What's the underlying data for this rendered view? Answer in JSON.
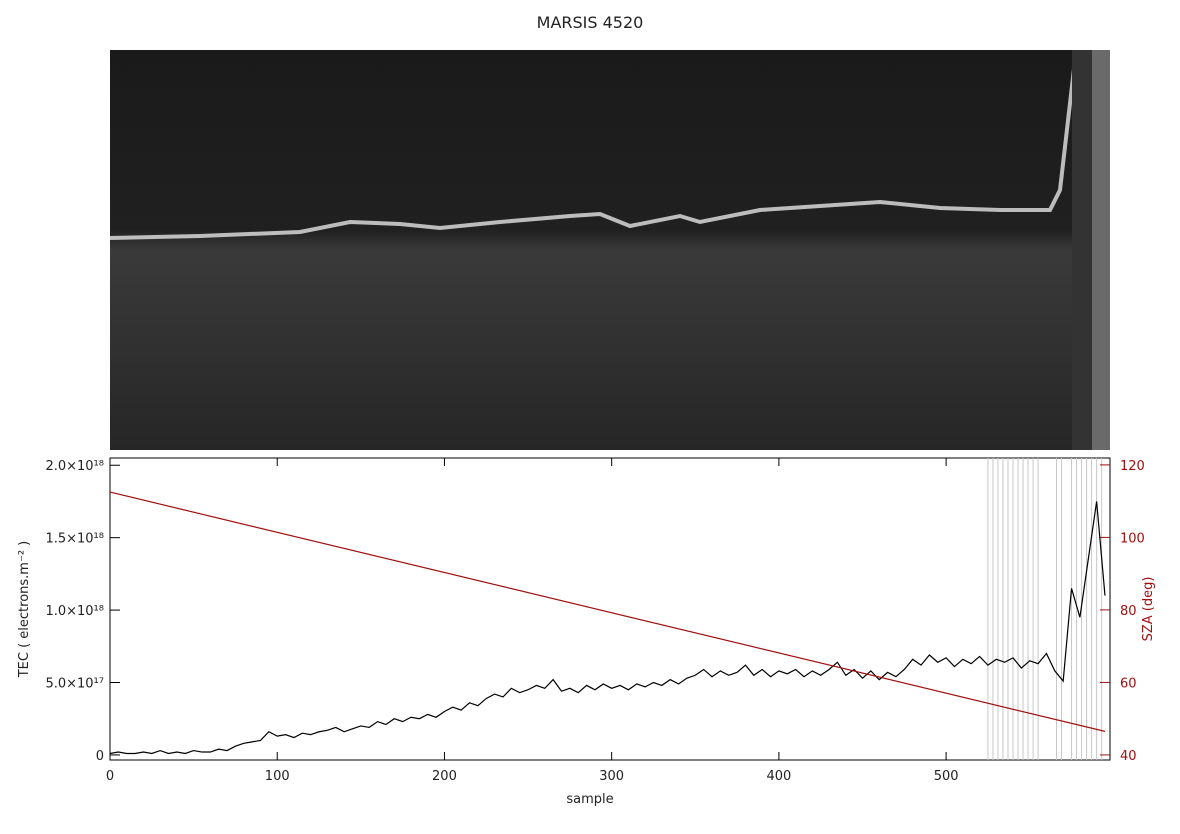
{
  "chart_data": {
    "type": "line",
    "title": "MARSIS 4520",
    "x_label": "sample",
    "y_label": "TEC ( electrons.m⁻² )",
    "y2_label": "SZA (deg)",
    "xlim": [
      0,
      598
    ],
    "xticks": [
      0,
      100,
      200,
      300,
      400,
      500
    ],
    "ylim": [
      -3.5e+16,
      2.05e+18
    ],
    "yticks": [
      0,
      {
        "value": 5e+17,
        "label": "5.0×10¹⁷"
      },
      {
        "value": 1e+18,
        "label": "1.0×10¹⁸"
      },
      {
        "value": 1.5e+18,
        "label": "1.5×10¹⁸"
      },
      {
        "value": 2e+18,
        "label": "2.0×10¹⁸"
      }
    ],
    "y2lim": [
      38.6,
      121.9
    ],
    "y2ticks": [
      40,
      60,
      80,
      100,
      120
    ],
    "vertical_lines": [
      525,
      528,
      531,
      534,
      537,
      540,
      543,
      546,
      549,
      552,
      555,
      566,
      569,
      575,
      578,
      581,
      584,
      587,
      590,
      593
    ],
    "vertical_line_color": "#c8c8c8",
    "series": [
      {
        "name": "TEC",
        "color": "#000000",
        "x": [
          0,
          5,
          10,
          15,
          20,
          25,
          30,
          35,
          40,
          45,
          50,
          55,
          60,
          65,
          70,
          75,
          80,
          85,
          90,
          95,
          100,
          105,
          110,
          115,
          120,
          125,
          130,
          135,
          140,
          145,
          150,
          155,
          160,
          165,
          170,
          175,
          180,
          185,
          190,
          195,
          200,
          205,
          210,
          215,
          220,
          225,
          230,
          235,
          240,
          245,
          250,
          255,
          260,
          265,
          270,
          275,
          280,
          285,
          290,
          295,
          300,
          305,
          310,
          315,
          320,
          325,
          330,
          335,
          340,
          345,
          350,
          355,
          360,
          365,
          370,
          375,
          380,
          385,
          390,
          395,
          400,
          405,
          410,
          415,
          420,
          425,
          430,
          435,
          440,
          445,
          450,
          455,
          460,
          465,
          470,
          475,
          480,
          485,
          490,
          495,
          500,
          505,
          510,
          515,
          520,
          525,
          530,
          535,
          540,
          545,
          550,
          555,
          560,
          565,
          570,
          575,
          580,
          585,
          590,
          595
        ],
        "values": [
          1e+16,
          2e+16,
          1e+16,
          1e+16,
          2e+16,
          1e+16,
          3e+16,
          1e+16,
          2e+16,
          1e+16,
          3e+16,
          2e+16,
          2e+16,
          4e+16,
          3e+16,
          6e+16,
          8e+16,
          9e+16,
          1e+17,
          1.6e+17,
          1.3e+17,
          1.4e+17,
          1.2e+17,
          1.5e+17,
          1.4e+17,
          1.6e+17,
          1.7e+17,
          1.9e+17,
          1.6e+17,
          1.8e+17,
          2e+17,
          1.9e+17,
          2.3e+17,
          2.1e+17,
          2.5e+17,
          2.3e+17,
          2.6e+17,
          2.5e+17,
          2.8e+17,
          2.6e+17,
          3e+17,
          3.3e+17,
          3.1e+17,
          3.6e+17,
          3.4e+17,
          3.9e+17,
          4.2e+17,
          4e+17,
          4.6e+17,
          4.3e+17,
          4.5e+17,
          4.8e+17,
          4.6e+17,
          5.2e+17,
          4.4e+17,
          4.6e+17,
          4.3e+17,
          4.8e+17,
          4.5e+17,
          4.9e+17,
          4.6e+17,
          4.8e+17,
          4.5e+17,
          4.9e+17,
          4.7e+17,
          5e+17,
          4.8e+17,
          5.2e+17,
          4.9e+17,
          5.3e+17,
          5.5e+17,
          5.9e+17,
          5.4e+17,
          5.8e+17,
          5.5e+17,
          5.7e+17,
          6.2e+17,
          5.5e+17,
          5.9e+17,
          5.4e+17,
          5.8e+17,
          5.6e+17,
          5.9e+17,
          5.4e+17,
          5.8e+17,
          5.5e+17,
          5.9e+17,
          6.4e+17,
          5.5e+17,
          5.9e+17,
          5.3e+17,
          5.8e+17,
          5.2e+17,
          5.7e+17,
          5.4e+17,
          5.9e+17,
          6.6e+17,
          6.2e+17,
          6.9e+17,
          6.4e+17,
          6.7e+17,
          6.1e+17,
          6.6e+17,
          6.3e+17,
          6.8e+17,
          6.2e+17,
          6.6e+17,
          6.4e+17,
          6.7e+17,
          6e+17,
          6.5e+17,
          6.3e+17,
          7e+17,
          5.8e+17,
          5.1e+17,
          1.15e+18,
          9.5e+17,
          1.35e+18,
          1.75e+18,
          1.1e+18
        ]
      },
      {
        "name": "SZA",
        "color": "#a01010",
        "axis": "y2",
        "x": [
          0,
          595
        ],
        "values": [
          112.5,
          46.5
        ]
      }
    ]
  }
}
